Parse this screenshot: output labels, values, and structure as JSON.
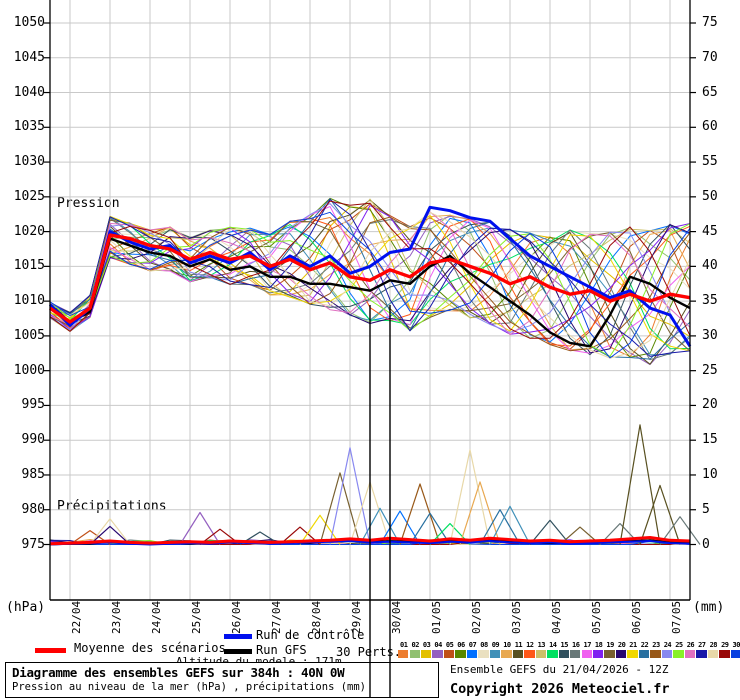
{
  "labels": {
    "pressure_section": "Pression",
    "precip_section": "Précipitations"
  },
  "axes": {
    "left_unit": "(hPa)",
    "right_unit": "(mm)",
    "left_ticks": [
      1050,
      1045,
      1040,
      1035,
      1030,
      1025,
      1020,
      1015,
      1010,
      1005,
      1000,
      995,
      990,
      985,
      980,
      975
    ],
    "right_ticks": [
      75,
      70,
      65,
      60,
      55,
      50,
      45,
      40,
      35,
      30,
      25,
      20,
      15,
      10,
      5,
      0
    ],
    "x_labels": [
      "22/04",
      "23/04",
      "24/04",
      "25/04",
      "26/04",
      "27/04",
      "28/04",
      "29/04",
      "30/04",
      "01/05",
      "02/05",
      "03/05",
      "04/05",
      "05/05",
      "06/05",
      "07/05"
    ]
  },
  "legend": {
    "mean": {
      "label": "Moyenne des scénarios",
      "color": "#ff0000"
    },
    "control": {
      "label": "Run de contrôle",
      "color": "#0010ee"
    },
    "gfs": {
      "label": "Run GFS",
      "color": "#000000"
    },
    "perts_label": "30 Perts.",
    "altitude_note": "Altitude du modele : 171m"
  },
  "perturbations": {
    "numbers": [
      "01",
      "02",
      "03",
      "04",
      "05",
      "06",
      "07",
      "08",
      "09",
      "10",
      "11",
      "12",
      "13",
      "14",
      "15",
      "16",
      "17",
      "18",
      "19",
      "20",
      "21",
      "22",
      "23",
      "24",
      "25",
      "26",
      "27",
      "28",
      "29",
      "30"
    ],
    "colors": [
      "#ED7D31",
      "#90C070",
      "#E3C000",
      "#9460C0",
      "#C05018",
      "#588800",
      "#0070FF",
      "#EAE0C0",
      "#4090B8",
      "#E8A850",
      "#585020",
      "#FF5818",
      "#CCC068",
      "#00E060",
      "#30505E",
      "#687878",
      "#F060F0",
      "#8020F0",
      "#786030",
      "#280870",
      "#F0D800",
      "#2870A0",
      "#985818",
      "#8888F0",
      "#88F028",
      "#E070C0",
      "#1818A8",
      "#E8D8A8",
      "#990808",
      "#0840E0"
    ]
  },
  "footer": {
    "title": "Diagramme des ensembles GEFS sur 384h : 40N 0W",
    "subtitle": "Pression au niveau de la mer (hPa) , précipitations (mm)",
    "run_info": "Ensemble GEFS du 21/04/2026 - 12Z",
    "copyright": "Copyright 2026 Meteociel.fr"
  },
  "chart_data": {
    "type": "line",
    "title": "Diagramme des ensembles GEFS sur 384h : 40N 0W",
    "ylabel_left": "Pression (hPa)",
    "ylabel_right": "Précipitations (mm)",
    "ylim_left": [
      975,
      1050
    ],
    "ylim_right": [
      0,
      75
    ],
    "grid": true,
    "x_hours": [
      0,
      12,
      24,
      36,
      48,
      60,
      72,
      84,
      96,
      108,
      120,
      132,
      144,
      156,
      168,
      180,
      192,
      204,
      216,
      228,
      240,
      252,
      264,
      276,
      288,
      300,
      312,
      324,
      336,
      348,
      360,
      372,
      384
    ],
    "marker_lines_hours": [
      192,
      204
    ],
    "pressure": {
      "mean": [
        1009,
        1007,
        1009,
        1019.5,
        1019,
        1018,
        1017.5,
        1016,
        1017,
        1016,
        1016.5,
        1015,
        1016,
        1014.5,
        1015.5,
        1013.5,
        1013,
        1014.5,
        1013.5,
        1015.5,
        1016,
        1015,
        1014,
        1012.5,
        1013.5,
        1012,
        1011,
        1011.5,
        1010,
        1011,
        1010,
        1011,
        1010.5
      ],
      "control": [
        1009.5,
        1006.5,
        1009,
        1020,
        1018.5,
        1017.5,
        1018,
        1015.5,
        1016.5,
        1015.5,
        1017,
        1014.5,
        1016.5,
        1015,
        1016.5,
        1014,
        1015,
        1017,
        1017.5,
        1023.5,
        1023,
        1022,
        1021.5,
        1019,
        1016.5,
        1015,
        1013.5,
        1012,
        1010.5,
        1011.5,
        1009,
        1008,
        1003.5
      ],
      "gfs": [
        1009,
        1007,
        1008.5,
        1019,
        1018,
        1017,
        1016.5,
        1015,
        1016,
        1014.5,
        1015,
        1013.5,
        1013.5,
        1012.5,
        1012.5,
        1012,
        1011.5,
        1013,
        1012.5,
        1015,
        1016.5,
        1014,
        1012,
        1010,
        1008,
        1005.5,
        1004,
        1003.5,
        1008,
        1013.5,
        1012.5,
        1010.5,
        1009
      ],
      "env_max": [
        1010,
        1008.5,
        1011,
        1022.5,
        1021.5,
        1020.5,
        1021,
        1019.5,
        1020.5,
        1021,
        1021,
        1020,
        1022,
        1023,
        1025.5,
        1024.5,
        1025.5,
        1023,
        1021.5,
        1023.5,
        1023,
        1022.5,
        1022,
        1021,
        1020.5,
        1020,
        1021,
        1020.5,
        1021,
        1021.5,
        1021,
        1022,
        1022
      ],
      "env_min": [
        1007.5,
        1005.5,
        1007.5,
        1016,
        1015,
        1014,
        1014,
        1012.5,
        1013,
        1012,
        1012,
        1010.5,
        1010,
        1009,
        1008,
        1007,
        1006,
        1006.5,
        1005,
        1007,
        1008,
        1007,
        1006,
        1004.5,
        1004,
        1003,
        1002,
        1001.5,
        1001,
        1001,
        1000,
        1001.5,
        1002
      ]
    },
    "precip": {
      "mean": [
        0.1,
        0.2,
        0.3,
        0.5,
        0.3,
        0.2,
        0.3,
        0.4,
        0.3,
        0.5,
        0.4,
        0.3,
        0.4,
        0.5,
        0.6,
        0.8,
        0.6,
        0.9,
        0.7,
        0.5,
        0.8,
        0.6,
        0.9,
        0.7,
        0.5,
        0.6,
        0.4,
        0.5,
        0.6,
        0.8,
        1,
        0.6,
        0.5
      ],
      "control": [
        0,
        0.1,
        0.2,
        0.3,
        0.1,
        0,
        0.1,
        0.2,
        0.1,
        0.3,
        0.2,
        0.1,
        0.2,
        0.3,
        0.4,
        0.5,
        0.3,
        0.4,
        0.3,
        0.2,
        0.4,
        0.3,
        0.5,
        0.3,
        0.2,
        0.3,
        0.1,
        0.2,
        0.3,
        0.4,
        0.5,
        0.2,
        0.1
      ],
      "gfs": [
        0,
        0.1,
        0.1,
        0.4,
        0.2,
        0.1,
        0.2,
        0.1,
        0.2,
        0.4,
        0.3,
        0.2,
        0.3,
        0.2,
        0.5,
        0.6,
        0.4,
        0.5,
        0.4,
        0.3,
        0.5,
        0.4,
        0.6,
        0.4,
        0.3,
        0.2,
        0.2,
        0.3,
        0.4,
        0.5,
        0.6,
        0.3,
        0.2
      ],
      "spikes": [
        {
          "hour": 24,
          "mm": 2.0,
          "member": 5
        },
        {
          "hour": 36,
          "mm": 3.7,
          "member": 28
        },
        {
          "hour": 36,
          "mm": 2.6,
          "member": 20
        },
        {
          "hour": 90,
          "mm": 4.6,
          "member": 4
        },
        {
          "hour": 102,
          "mm": 2.2,
          "member": 29
        },
        {
          "hour": 126,
          "mm": 1.8,
          "member": 15
        },
        {
          "hour": 150,
          "mm": 2.5,
          "member": 29
        },
        {
          "hour": 162,
          "mm": 4.2,
          "member": 21
        },
        {
          "hour": 174,
          "mm": 10.3,
          "member": 19
        },
        {
          "hour": 180,
          "mm": 13.9,
          "member": 24
        },
        {
          "hour": 192,
          "mm": 9.0,
          "member": 28
        },
        {
          "hour": 198,
          "mm": 5.2,
          "member": 9
        },
        {
          "hour": 210,
          "mm": 4.8,
          "member": 7
        },
        {
          "hour": 222,
          "mm": 8.7,
          "member": 23
        },
        {
          "hour": 228,
          "mm": 4.5,
          "member": 22
        },
        {
          "hour": 240,
          "mm": 3.0,
          "member": 14
        },
        {
          "hour": 252,
          "mm": 13.6,
          "member": 28
        },
        {
          "hour": 258,
          "mm": 9.0,
          "member": 10
        },
        {
          "hour": 270,
          "mm": 5.0,
          "member": 22
        },
        {
          "hour": 276,
          "mm": 5.5,
          "member": 9
        },
        {
          "hour": 300,
          "mm": 3.5,
          "member": 15
        },
        {
          "hour": 318,
          "mm": 2.5,
          "member": 19
        },
        {
          "hour": 342,
          "mm": 3.0,
          "member": 16
        },
        {
          "hour": 354,
          "mm": 17.2,
          "member": 11
        },
        {
          "hour": 366,
          "mm": 8.5,
          "member": 11
        },
        {
          "hour": 378,
          "mm": 4.0,
          "member": 16
        }
      ]
    }
  }
}
